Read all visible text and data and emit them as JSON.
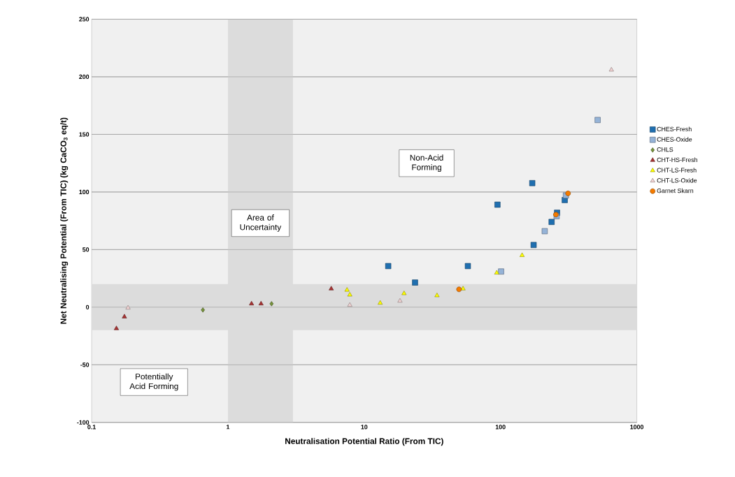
{
  "chart_data": {
    "type": "scatter",
    "xlabel": "Neutralisation Potential Ratio (From TIC)",
    "ylabel": "Net Neutralising Potential (From TIC) (kg CaCO$_{3}$ eq/t)",
    "log": "x",
    "xlim": [
      0.1,
      1000
    ],
    "xticks": [
      0.1,
      1,
      10,
      100,
      1000
    ],
    "ylim": [
      -100,
      250
    ],
    "yticks": [
      -100,
      -50,
      0,
      50,
      100,
      150,
      200,
      250
    ],
    "grid": "y",
    "legend": "right",
    "bands": [
      {
        "axis": "x",
        "from": 1,
        "to": 3,
        "label": "Area of Uncertainty",
        "color": "#dcdcdc"
      },
      {
        "axis": "y",
        "from": -20,
        "to": 20,
        "color": "#dcdcdc"
      }
    ],
    "annotations": [
      "Non-Acid Forming",
      "Potentially Acid Forming"
    ],
    "series": [
      {
        "name": "CHES-Fresh",
        "color": "#1f6fb0",
        "marker": "square",
        "x": [
          15,
          23.6,
          57.6,
          95,
          171,
          175,
          237,
          260,
          296
        ],
        "values": [
          35.7,
          21.4,
          35.7,
          89,
          107.7,
          54,
          74,
          82,
          93
        ]
      },
      {
        "name": "CHES-Oxide",
        "color": "#95b3d7",
        "marker": "square",
        "x": [
          101,
          211,
          258,
          302,
          516
        ],
        "values": [
          31,
          66,
          79,
          97,
          162.5
        ]
      },
      {
        "name": "CHLS",
        "color": "#77933c",
        "marker": "diamond",
        "x": [
          0.655,
          2.09
        ],
        "values": [
          -2.4,
          3
        ]
      },
      {
        "name": "CHT-HS-Fresh",
        "color": "#a83232",
        "marker": "triangle",
        "x": [
          0.152,
          0.174,
          1.49,
          1.75,
          5.73
        ],
        "values": [
          -18.5,
          -8.3,
          3,
          3,
          16
        ]
      },
      {
        "name": "CHT-LS-Fresh",
        "color": "#ffff00",
        "marker": "triangle",
        "x": [
          7.48,
          7.84,
          13.1,
          19.6,
          34.2,
          53.1,
          93.8,
          144
        ],
        "values": [
          14.9,
          10.7,
          3.6,
          11.9,
          10.1,
          16,
          29.8,
          45
        ]
      },
      {
        "name": "CHT-LS-Oxide",
        "color": "#f2d4d4",
        "marker": "triangle",
        "x": [
          0.185,
          7.84,
          18.3,
          651
        ],
        "values": [
          -0.6,
          1.8,
          5.4,
          206
        ]
      },
      {
        "name": "Garnet Skarn",
        "color": "#f57b00",
        "marker": "circle",
        "x": [
          49.6,
          255,
          313
        ],
        "values": [
          15.5,
          80.4,
          98.8
        ]
      }
    ]
  }
}
